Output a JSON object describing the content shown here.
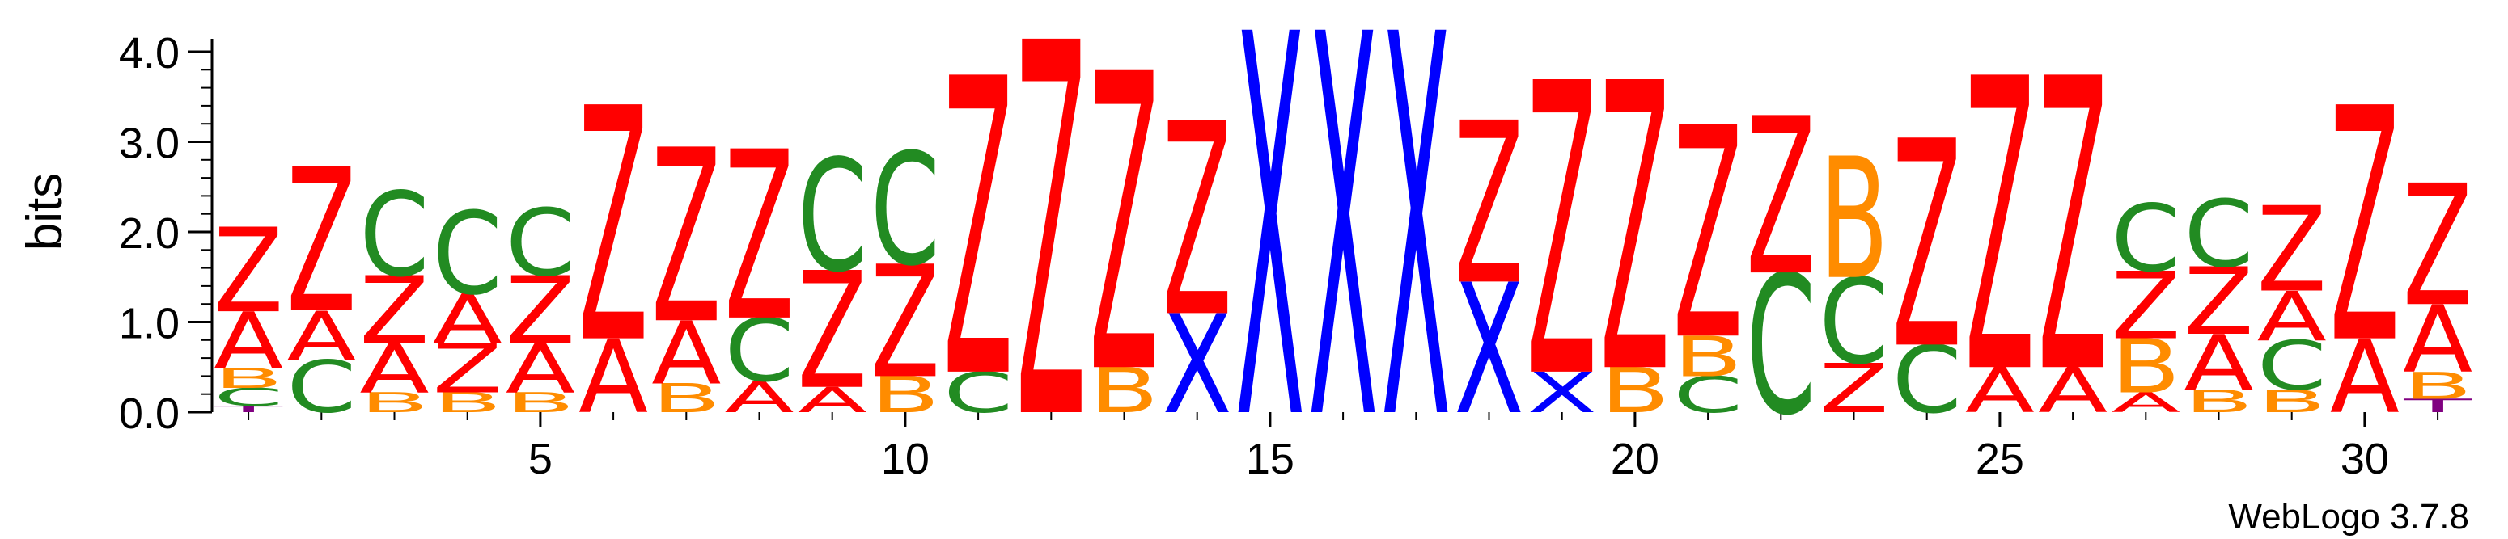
{
  "chart_data": {
    "type": "sequence-logo",
    "ylabel": "bits",
    "ylim": [
      0,
      4.0
    ],
    "y_ticks": [
      "0.0",
      "1.0",
      "2.0",
      "3.0",
      "4.0"
    ],
    "x_ticks": [
      5,
      10,
      15,
      20,
      25,
      30
    ],
    "software_label": "WebLogo 3.7.8",
    "colors": {
      "Z": "#ff0000",
      "A": "#ff0000",
      "C": "#228b22",
      "B": "#ff8c00",
      "X": "#0000ff",
      "T": "#800080"
    },
    "positions": [
      {
        "pos": 1,
        "stack": [
          [
            "T",
            0.07
          ],
          [
            "C",
            0.2
          ],
          [
            "B",
            0.22
          ],
          [
            "A",
            0.63
          ],
          [
            "Z",
            0.94
          ]
        ]
      },
      {
        "pos": 2,
        "stack": [
          [
            "C",
            0.58
          ],
          [
            "A",
            0.55
          ],
          [
            "Z",
            1.6
          ]
        ]
      },
      {
        "pos": 3,
        "stack": [
          [
            "B",
            0.22
          ],
          [
            "A",
            0.55
          ],
          [
            "Z",
            0.75
          ],
          [
            "C",
            0.94
          ]
        ]
      },
      {
        "pos": 4,
        "stack": [
          [
            "B",
            0.22
          ],
          [
            "Z",
            0.55
          ],
          [
            "A",
            0.55
          ],
          [
            "C",
            0.92
          ]
        ]
      },
      {
        "pos": 5,
        "stack": [
          [
            "B",
            0.22
          ],
          [
            "A",
            0.55
          ],
          [
            "Z",
            0.75
          ],
          [
            "C",
            0.75
          ]
        ]
      },
      {
        "pos": 6,
        "stack": [
          [
            "A",
            0.82
          ],
          [
            "Z",
            2.6
          ]
        ]
      },
      {
        "pos": 7,
        "stack": [
          [
            "B",
            0.32
          ],
          [
            "A",
            0.7
          ],
          [
            "Z",
            1.93
          ]
        ]
      },
      {
        "pos": 8,
        "stack": [
          [
            "A",
            0.35
          ],
          [
            "C",
            0.7
          ],
          [
            "Z",
            1.88
          ]
        ]
      },
      {
        "pos": 9,
        "stack": [
          [
            "A",
            0.28
          ],
          [
            "Z",
            1.3
          ],
          [
            "C",
            1.25
          ]
        ]
      },
      {
        "pos": 10,
        "stack": [
          [
            "B",
            0.4
          ],
          [
            "Z",
            1.25
          ],
          [
            "C",
            1.25
          ]
        ]
      },
      {
        "pos": 11,
        "stack": [
          [
            "C",
            0.45
          ],
          [
            "Z",
            3.3
          ]
        ]
      },
      {
        "pos": 12,
        "stack": [
          [
            "Z",
            4.15
          ]
        ]
      },
      {
        "pos": 13,
        "stack": [
          [
            "B",
            0.5
          ],
          [
            "Z",
            3.3
          ]
        ]
      },
      {
        "pos": 14,
        "stack": [
          [
            "X",
            1.1
          ],
          [
            "Z",
            2.15
          ]
        ]
      },
      {
        "pos": 15,
        "stack": [
          [
            "X",
            4.25
          ]
        ]
      },
      {
        "pos": 16,
        "stack": [
          [
            "X",
            4.25
          ]
        ]
      },
      {
        "pos": 17,
        "stack": [
          [
            "X",
            4.25
          ]
        ]
      },
      {
        "pos": 18,
        "stack": [
          [
            "X",
            1.45
          ],
          [
            "Z",
            1.8
          ]
        ]
      },
      {
        "pos": 19,
        "stack": [
          [
            "X",
            0.45
          ],
          [
            "Z",
            3.25
          ]
        ]
      },
      {
        "pos": 20,
        "stack": [
          [
            "B",
            0.5
          ],
          [
            "Z",
            3.2
          ]
        ]
      },
      {
        "pos": 21,
        "stack": [
          [
            "C",
            0.4
          ],
          [
            "B",
            0.45
          ],
          [
            "Z",
            2.35
          ]
        ]
      },
      {
        "pos": 22,
        "stack": [
          [
            "C",
            1.55
          ],
          [
            "Z",
            1.75
          ]
        ]
      },
      {
        "pos": 23,
        "stack": [
          [
            "Z",
            0.55
          ],
          [
            "C",
            0.95
          ],
          [
            "B",
            1.35
          ]
        ]
      },
      {
        "pos": 24,
        "stack": [
          [
            "C",
            0.75
          ],
          [
            "Z",
            2.3
          ]
        ]
      },
      {
        "pos": 25,
        "stack": [
          [
            "A",
            0.5
          ],
          [
            "Z",
            3.25
          ]
        ]
      },
      {
        "pos": 26,
        "stack": [
          [
            "A",
            0.5
          ],
          [
            "Z",
            3.25
          ]
        ]
      },
      {
        "pos": 27,
        "stack": [
          [
            "A",
            0.22
          ],
          [
            "B",
            0.6
          ],
          [
            "Z",
            0.75
          ],
          [
            "C",
            0.75
          ]
        ]
      },
      {
        "pos": 28,
        "stack": [
          [
            "B",
            0.25
          ],
          [
            "A",
            0.62
          ],
          [
            "Z",
            0.75
          ],
          [
            "C",
            0.75
          ]
        ]
      },
      {
        "pos": 29,
        "stack": [
          [
            "B",
            0.25
          ],
          [
            "C",
            0.55
          ],
          [
            "A",
            0.55
          ],
          [
            "Z",
            0.95
          ]
        ]
      },
      {
        "pos": 30,
        "stack": [
          [
            "A",
            0.82
          ],
          [
            "Z",
            2.6
          ]
        ]
      },
      {
        "pos": 31,
        "stack": [
          [
            "T",
            0.15
          ],
          [
            "B",
            0.3
          ],
          [
            "A",
            0.75
          ],
          [
            "Z",
            1.35
          ]
        ]
      }
    ]
  }
}
